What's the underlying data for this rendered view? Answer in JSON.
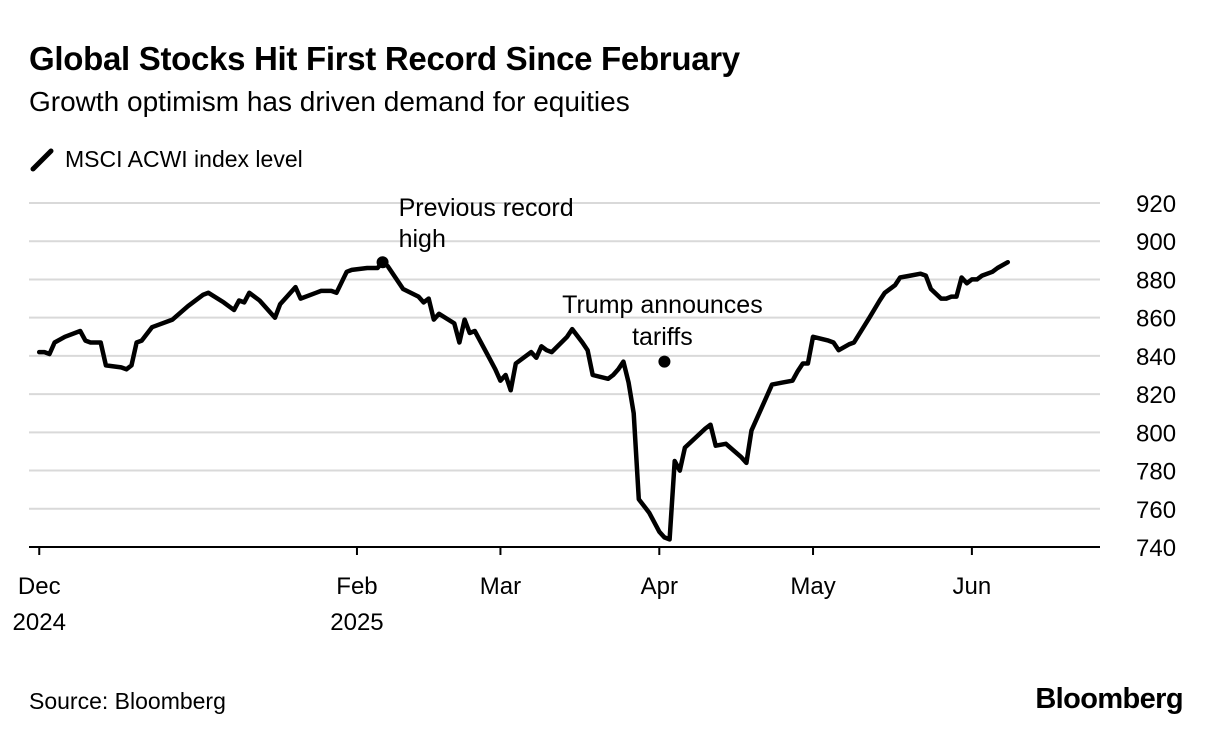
{
  "header": {
    "title": "Global Stocks Hit First Record Since February",
    "subtitle": "Growth optimism has driven demand for equities"
  },
  "legend": {
    "label": "MSCI ACWI index level"
  },
  "footer": {
    "source": "Source: Bloomberg",
    "brand": "Bloomberg"
  },
  "chart_data": {
    "type": "line",
    "title": "Global Stocks Hit First Record Since February",
    "subtitle": "Growth optimism has driven demand for equities",
    "xlabel": "",
    "ylabel": "",
    "xlim": [
      "2024-11-29",
      "2025-06-26"
    ],
    "ylim": [
      740,
      920
    ],
    "y_ticks": [
      740,
      760,
      780,
      800,
      820,
      840,
      860,
      880,
      900,
      920
    ],
    "y_axis_side": "right",
    "grid": true,
    "legend_position": "top-left",
    "line_color": "#000000",
    "x_ticks": [
      {
        "date": "2024-12-01",
        "line1": "Dec",
        "line2": "2024"
      },
      {
        "date": "2025-02-01",
        "line1": "Feb",
        "line2": "2025"
      },
      {
        "date": "2025-03-01",
        "line1": "Mar",
        "line2": ""
      },
      {
        "date": "2025-04-01",
        "line1": "Apr",
        "line2": ""
      },
      {
        "date": "2025-05-01",
        "line1": "May",
        "line2": ""
      },
      {
        "date": "2025-06-01",
        "line1": "Jun",
        "line2": ""
      }
    ],
    "series": [
      {
        "name": "MSCI ACWI index level",
        "points": [
          [
            "2024-12-01",
            842
          ],
          [
            "2024-12-02",
            842
          ],
          [
            "2024-12-03",
            841
          ],
          [
            "2024-12-04",
            847
          ],
          [
            "2024-12-06",
            850
          ],
          [
            "2024-12-09",
            853
          ],
          [
            "2024-12-10",
            848
          ],
          [
            "2024-12-11",
            847
          ],
          [
            "2024-12-13",
            847
          ],
          [
            "2024-12-14",
            835
          ],
          [
            "2024-12-17",
            834
          ],
          [
            "2024-12-18",
            833
          ],
          [
            "2024-12-19",
            835
          ],
          [
            "2024-12-20",
            847
          ],
          [
            "2024-12-21",
            848
          ],
          [
            "2024-12-23",
            855
          ],
          [
            "2024-12-24",
            856
          ],
          [
            "2024-12-27",
            859
          ],
          [
            "2024-12-30",
            866
          ],
          [
            "2025-01-02",
            872
          ],
          [
            "2025-01-03",
            873
          ],
          [
            "2025-01-06",
            868
          ],
          [
            "2025-01-08",
            864
          ],
          [
            "2025-01-09",
            869
          ],
          [
            "2025-01-10",
            868
          ],
          [
            "2025-01-11",
            873
          ],
          [
            "2025-01-13",
            869
          ],
          [
            "2025-01-16",
            860
          ],
          [
            "2025-01-17",
            867
          ],
          [
            "2025-01-20",
            876
          ],
          [
            "2025-01-21",
            870
          ],
          [
            "2025-01-24",
            873
          ],
          [
            "2025-01-25",
            874
          ],
          [
            "2025-01-27",
            874
          ],
          [
            "2025-01-28",
            873
          ],
          [
            "2025-01-30",
            884
          ],
          [
            "2025-01-31",
            885
          ],
          [
            "2025-02-03",
            886
          ],
          [
            "2025-02-05",
            886
          ],
          [
            "2025-02-06",
            889
          ],
          [
            "2025-02-07",
            887
          ],
          [
            "2025-02-10",
            875
          ],
          [
            "2025-02-13",
            871
          ],
          [
            "2025-02-14",
            868
          ],
          [
            "2025-02-15",
            870
          ],
          [
            "2025-02-16",
            859
          ],
          [
            "2025-02-17",
            862
          ],
          [
            "2025-02-20",
            857
          ],
          [
            "2025-02-21",
            847
          ],
          [
            "2025-02-22",
            859
          ],
          [
            "2025-02-23",
            852
          ],
          [
            "2025-02-24",
            853
          ],
          [
            "2025-02-27",
            838
          ],
          [
            "2025-02-28",
            833
          ],
          [
            "2025-03-01",
            827
          ],
          [
            "2025-03-02",
            830
          ],
          [
            "2025-03-03",
            822
          ],
          [
            "2025-03-04",
            836
          ],
          [
            "2025-03-07",
            842
          ],
          [
            "2025-03-08",
            839
          ],
          [
            "2025-03-09",
            845
          ],
          [
            "2025-03-10",
            843
          ],
          [
            "2025-03-11",
            842
          ],
          [
            "2025-03-14",
            850
          ],
          [
            "2025-03-15",
            854
          ],
          [
            "2025-03-17",
            847
          ],
          [
            "2025-03-18",
            843
          ],
          [
            "2025-03-19",
            830
          ],
          [
            "2025-03-22",
            828
          ],
          [
            "2025-03-23",
            830
          ],
          [
            "2025-03-24",
            833
          ],
          [
            "2025-03-25",
            837
          ],
          [
            "2025-03-26",
            826
          ],
          [
            "2025-03-27",
            810
          ],
          [
            "2025-03-28",
            765
          ],
          [
            "2025-03-30",
            758
          ],
          [
            "2025-04-01",
            748
          ],
          [
            "2025-04-02",
            745
          ],
          [
            "2025-04-03",
            744
          ],
          [
            "2025-04-04",
            785
          ],
          [
            "2025-04-05",
            780
          ],
          [
            "2025-04-06",
            792
          ],
          [
            "2025-04-10",
            802
          ],
          [
            "2025-04-11",
            804
          ],
          [
            "2025-04-12",
            793
          ],
          [
            "2025-04-14",
            794
          ],
          [
            "2025-04-17",
            787
          ],
          [
            "2025-04-18",
            784
          ],
          [
            "2025-04-19",
            801
          ],
          [
            "2025-04-22",
            819
          ],
          [
            "2025-04-23",
            825
          ],
          [
            "2025-04-25",
            826
          ],
          [
            "2025-04-27",
            827
          ],
          [
            "2025-04-28",
            832
          ],
          [
            "2025-04-29",
            836
          ],
          [
            "2025-04-30",
            836
          ],
          [
            "2025-05-01",
            850
          ],
          [
            "2025-05-04",
            848
          ],
          [
            "2025-05-05",
            847
          ],
          [
            "2025-05-06",
            843
          ],
          [
            "2025-05-08",
            846
          ],
          [
            "2025-05-09",
            847
          ],
          [
            "2025-05-12",
            860
          ],
          [
            "2025-05-14",
            869
          ],
          [
            "2025-05-15",
            873
          ],
          [
            "2025-05-17",
            877
          ],
          [
            "2025-05-18",
            881
          ],
          [
            "2025-05-20",
            882
          ],
          [
            "2025-05-22",
            883
          ],
          [
            "2025-05-23",
            882
          ],
          [
            "2025-05-24",
            875
          ],
          [
            "2025-05-26",
            870
          ],
          [
            "2025-05-27",
            870
          ],
          [
            "2025-05-28",
            871
          ],
          [
            "2025-05-29",
            871
          ],
          [
            "2025-05-30",
            881
          ],
          [
            "2025-05-31",
            878
          ],
          [
            "2025-06-01",
            880
          ],
          [
            "2025-06-02",
            880
          ],
          [
            "2025-06-03",
            882
          ],
          [
            "2025-06-05",
            884
          ],
          [
            "2025-06-06",
            886
          ],
          [
            "2025-06-08",
            889
          ]
        ]
      }
    ],
    "annotations": [
      {
        "date": "2025-02-06",
        "value": 889,
        "lines": [
          "Previous record",
          "high"
        ]
      },
      {
        "date": "2025-04-02",
        "value": 837,
        "lines": [
          "Trump announces",
          "tariffs"
        ]
      }
    ]
  }
}
